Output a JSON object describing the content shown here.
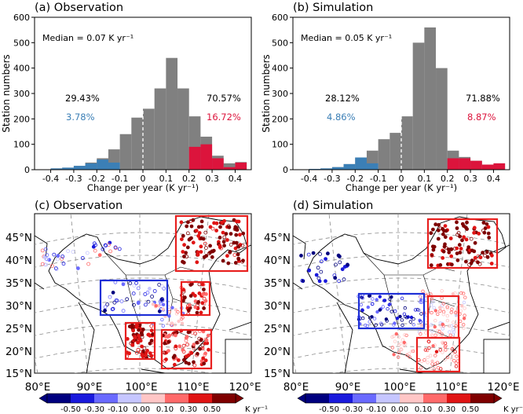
{
  "colors": {
    "neutral": "#808080",
    "negative": "#3b7fb6",
    "positive": "#dc143c",
    "box_warm": "#e8201f",
    "box_cool": "#1e2fd6"
  },
  "chart_data": [
    {
      "type": "bar",
      "panel": "a",
      "title": "(a) Observation",
      "xlabel": "Change per year (K yr⁻¹)",
      "ylabel": "Station numbers",
      "xlim": [
        -0.47,
        0.47
      ],
      "ylim": [
        0,
        600
      ],
      "xticks": [
        -0.4,
        -0.3,
        -0.2,
        -0.1,
        0,
        0.1,
        0.2,
        0.3,
        0.4
      ],
      "xtick_labels": [
        "-0.4",
        "-0.3",
        "-0.2",
        "-0.1",
        "0",
        "0.1",
        "0.2",
        "0.3",
        "0.4"
      ],
      "yticks": [
        0,
        100,
        200,
        300,
        400,
        500,
        600
      ],
      "ytick_labels": [
        "0",
        "100",
        "200",
        "300",
        "400",
        "500",
        "600"
      ],
      "bin_edges": [
        -0.4,
        -0.35,
        -0.3,
        -0.25,
        -0.2,
        -0.15,
        -0.1,
        -0.05,
        0,
        0.05,
        0.1,
        0.15,
        0.2,
        0.25,
        0.3,
        0.35,
        0.4,
        0.45
      ],
      "series": [
        {
          "kind": "all",
          "values": [
            5,
            8,
            15,
            28,
            45,
            80,
            140,
            205,
            240,
            320,
            440,
            320,
            210,
            130,
            55,
            25,
            30
          ]
        },
        {
          "kind": "negative",
          "values": [
            5,
            8,
            15,
            25,
            40,
            28,
            0,
            0,
            0,
            0,
            0,
            0,
            0,
            0,
            0,
            0,
            0
          ]
        },
        {
          "kind": "positive",
          "values": [
            0,
            0,
            0,
            0,
            0,
            0,
            0,
            0,
            0,
            0,
            0,
            0,
            90,
            100,
            45,
            10,
            28
          ]
        }
      ],
      "zero_line": 0,
      "annotations": {
        "median": "Median = 0.07 K yr⁻¹",
        "neg_total": "29.43%",
        "pos_total": "70.57%",
        "neg_sig": "3.78%",
        "pos_sig": "16.72%"
      }
    },
    {
      "type": "bar",
      "panel": "b",
      "title": "(b) Simulation",
      "xlabel": "Change per year (K yr⁻¹)",
      "ylabel": "Station numbers",
      "xlim": [
        -0.47,
        0.47
      ],
      "ylim": [
        0,
        600
      ],
      "xticks": [
        -0.4,
        -0.3,
        -0.2,
        -0.1,
        0,
        0.1,
        0.2,
        0.3,
        0.4
      ],
      "xtick_labels": [
        "-0.4",
        "-0.3",
        "-0.2",
        "-0.1",
        "0",
        "0.1",
        "0.2",
        "0.3",
        "0.4"
      ],
      "yticks": [
        0,
        100,
        200,
        300,
        400,
        500,
        600
      ],
      "ytick_labels": [
        "0",
        "100",
        "200",
        "300",
        "400",
        "500",
        "600"
      ],
      "bin_edges": [
        -0.4,
        -0.35,
        -0.3,
        -0.25,
        -0.2,
        -0.15,
        -0.1,
        -0.05,
        0,
        0.05,
        0.1,
        0.15,
        0.2,
        0.25,
        0.3,
        0.35,
        0.4,
        0.45
      ],
      "series": [
        {
          "kind": "all",
          "values": [
            3,
            5,
            10,
            22,
            48,
            75,
            120,
            145,
            210,
            500,
            560,
            400,
            75,
            50,
            35,
            20,
            25
          ]
        },
        {
          "kind": "negative",
          "values": [
            3,
            5,
            10,
            22,
            48,
            25,
            0,
            0,
            0,
            0,
            0,
            0,
            0,
            0,
            0,
            0,
            0
          ]
        },
        {
          "kind": "positive",
          "values": [
            0,
            0,
            0,
            0,
            0,
            0,
            0,
            0,
            0,
            0,
            0,
            0,
            45,
            45,
            35,
            20,
            25
          ]
        }
      ],
      "zero_line": 0,
      "annotations": {
        "median": "Median = 0.05 K yr⁻¹",
        "neg_total": "28.12%",
        "pos_total": "71.88%",
        "neg_sig": "4.86%",
        "pos_sig": "8.87%"
      }
    },
    {
      "type": "scatter",
      "panel": "c",
      "title": "(c) Observation",
      "xtick_labels": [
        "80°E",
        "90°E",
        "100°E",
        "110°E",
        "120°E"
      ],
      "ytick_labels": [
        "15°N",
        "20°N",
        "25°N",
        "30°N",
        "35°N",
        "40°N",
        "45°N"
      ],
      "regions": [
        {
          "color": "red",
          "lon": [
            123,
            135
          ],
          "lat": [
            39,
            53
          ]
        },
        {
          "color": "blue",
          "lon": [
            98,
            114
          ],
          "lat": [
            28,
            36
          ]
        },
        {
          "color": "red",
          "lon": [
            111,
            119
          ],
          "lat": [
            29,
            36
          ]
        },
        {
          "color": "red",
          "lon": [
            104,
            110
          ],
          "lat": [
            20,
            26
          ]
        },
        {
          "color": "red",
          "lon": [
            111,
            120
          ],
          "lat": [
            18,
            26
          ]
        }
      ]
    },
    {
      "type": "scatter",
      "panel": "d",
      "title": "(d) Simulation",
      "xtick_labels": [
        "80°E",
        "90°E",
        "100°E",
        "110°E",
        "120°E"
      ],
      "ytick_labels": [
        "15°N",
        "20°N",
        "25°N",
        "30°N",
        "35°N",
        "40°N",
        "45°N"
      ],
      "regions": [
        {
          "color": "red",
          "lon": [
            123,
            135
          ],
          "lat": [
            39,
            53
          ]
        },
        {
          "color": "blue",
          "lon": [
            98,
            114
          ],
          "lat": [
            28,
            36
          ]
        },
        {
          "color": "red",
          "lon": [
            111,
            119
          ],
          "lat": [
            29,
            36
          ]
        },
        {
          "color": "red",
          "lon": [
            112,
            120
          ],
          "lat": [
            18,
            26
          ]
        }
      ]
    }
  ],
  "colorbar": {
    "tick_labels": [
      "-0.50",
      "-0.30",
      "-0.10",
      "0.00",
      "0.10",
      "0.30",
      "0.50"
    ],
    "unit": "K yr⁻¹",
    "colors": [
      "#00007f",
      "#1a1adc",
      "#6a6aff",
      "#c6c6ff",
      "#ffc6c6",
      "#ff6a6a",
      "#e01515",
      "#7f0000"
    ]
  }
}
